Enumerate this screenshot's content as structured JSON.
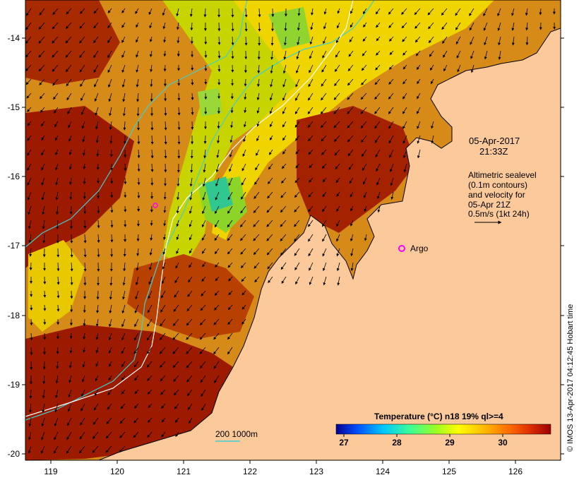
{
  "map": {
    "timestamp_date": "05-Apr-2017",
    "timestamp_time": "21:33Z",
    "legend_lines": [
      "Altimetric sealevel",
      "(0.1m contours)",
      "and velocity for",
      "05-Apr 21Z",
      "0.5m/s (1kt 24h)"
    ],
    "argo_label": "Argo",
    "bathymetry_label": "200  1000m",
    "credit": "© IMOS 13-Apr-2017 04:12:45 Hobart time",
    "lon_ticks": [
      "119",
      "120",
      "121",
      "122",
      "123",
      "124",
      "125",
      "126"
    ],
    "lat_ticks": [
      "-14",
      "-15",
      "-16",
      "-17",
      "-18",
      "-19",
      "-20"
    ]
  },
  "colorbar": {
    "title": "Temperature (°C) n18 19% ql>=4",
    "ticks": [
      "27",
      "28",
      "29",
      "30"
    ],
    "colors": [
      "#00008f",
      "#0050ff",
      "#00c8ff",
      "#40ff90",
      "#a0ff20",
      "#ffff00",
      "#ffc000",
      "#ff7000",
      "#e03000",
      "#9b0000"
    ]
  },
  "colors": {
    "land": "#fcc99a",
    "warm_sea": "#9b1a00",
    "mid_sea": "#d98a10",
    "cool_sea": "#c7e000",
    "cyan_contour": "#40d0d0",
    "white_contour": "#ffffff"
  }
}
